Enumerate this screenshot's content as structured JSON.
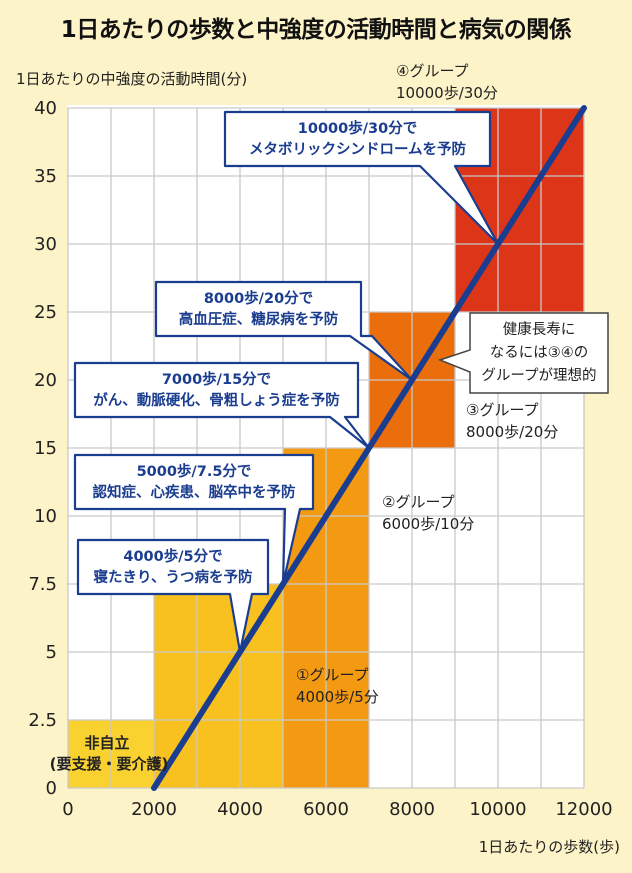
{
  "title": "1日あたりの歩数と中強度の活動時間と病気の関係",
  "chart_data": {
    "type": "line",
    "xlabel": "1日あたりの歩数(歩)",
    "ylabel": "1日あたりの中強度の活動時間(分)",
    "xlim": [
      0,
      12000
    ],
    "x_ticks": [
      0,
      2000,
      4000,
      6000,
      8000,
      10000,
      12000
    ],
    "y_ticks": [
      0,
      2.5,
      5,
      7.5,
      10,
      15,
      20,
      25,
      30,
      35,
      40
    ],
    "grid": true,
    "line": {
      "x": [
        2000,
        12000
      ],
      "y": [
        0,
        40
      ],
      "color": "#1a3d8f"
    },
    "zones": [
      {
        "label": "非自立",
        "sublabel": "(要支援・要介護)",
        "x": [
          0,
          2000
        ],
        "y": [
          0,
          2.5
        ],
        "color": "#fad230"
      },
      {
        "x": [
          2000,
          5000
        ],
        "y": [
          0,
          7.5
        ],
        "color": "#f8c11f"
      },
      {
        "x": [
          5000,
          7000
        ],
        "y": [
          0,
          15
        ],
        "color": "#f39a12"
      },
      {
        "x": [
          7000,
          9000
        ],
        "y": [
          15,
          25
        ],
        "color": "#ea6e0c"
      },
      {
        "x": [
          9000,
          12000
        ],
        "y": [
          25,
          40
        ],
        "color": "#dd3518"
      }
    ],
    "groups": [
      {
        "line1": "①グループ",
        "line2": "4000歩/5分"
      },
      {
        "line1": "②グループ",
        "line2": "6000歩/10分"
      },
      {
        "line1": "③グループ",
        "line2": "8000歩/20分"
      },
      {
        "line1": "④グループ",
        "line2": "10000歩/30分"
      }
    ],
    "callouts": [
      {
        "line1": "10000歩/30分で",
        "line2": "メタボリックシンドロームを予防",
        "x": 10000,
        "y": 30
      },
      {
        "line1": "8000歩/20分で",
        "line2": "高血圧症、糖尿病を予防",
        "x": 8000,
        "y": 20
      },
      {
        "line1": "7000歩/15分で",
        "line2": "がん、動脈硬化、骨粗しょう症を予防",
        "x": 7000,
        "y": 15
      },
      {
        "line1": "5000歩/7.5分で",
        "line2": "認知症、心疾患、脳卒中を予防",
        "x": 5000,
        "y": 7.5
      },
      {
        "line1": "4000歩/5分で",
        "line2": "寝たきり、うつ病を予防",
        "x": 4000,
        "y": 5
      }
    ],
    "note": {
      "line1": "健康長寿に",
      "line2": "なるには③④の",
      "line3": "グループが理想的"
    }
  }
}
